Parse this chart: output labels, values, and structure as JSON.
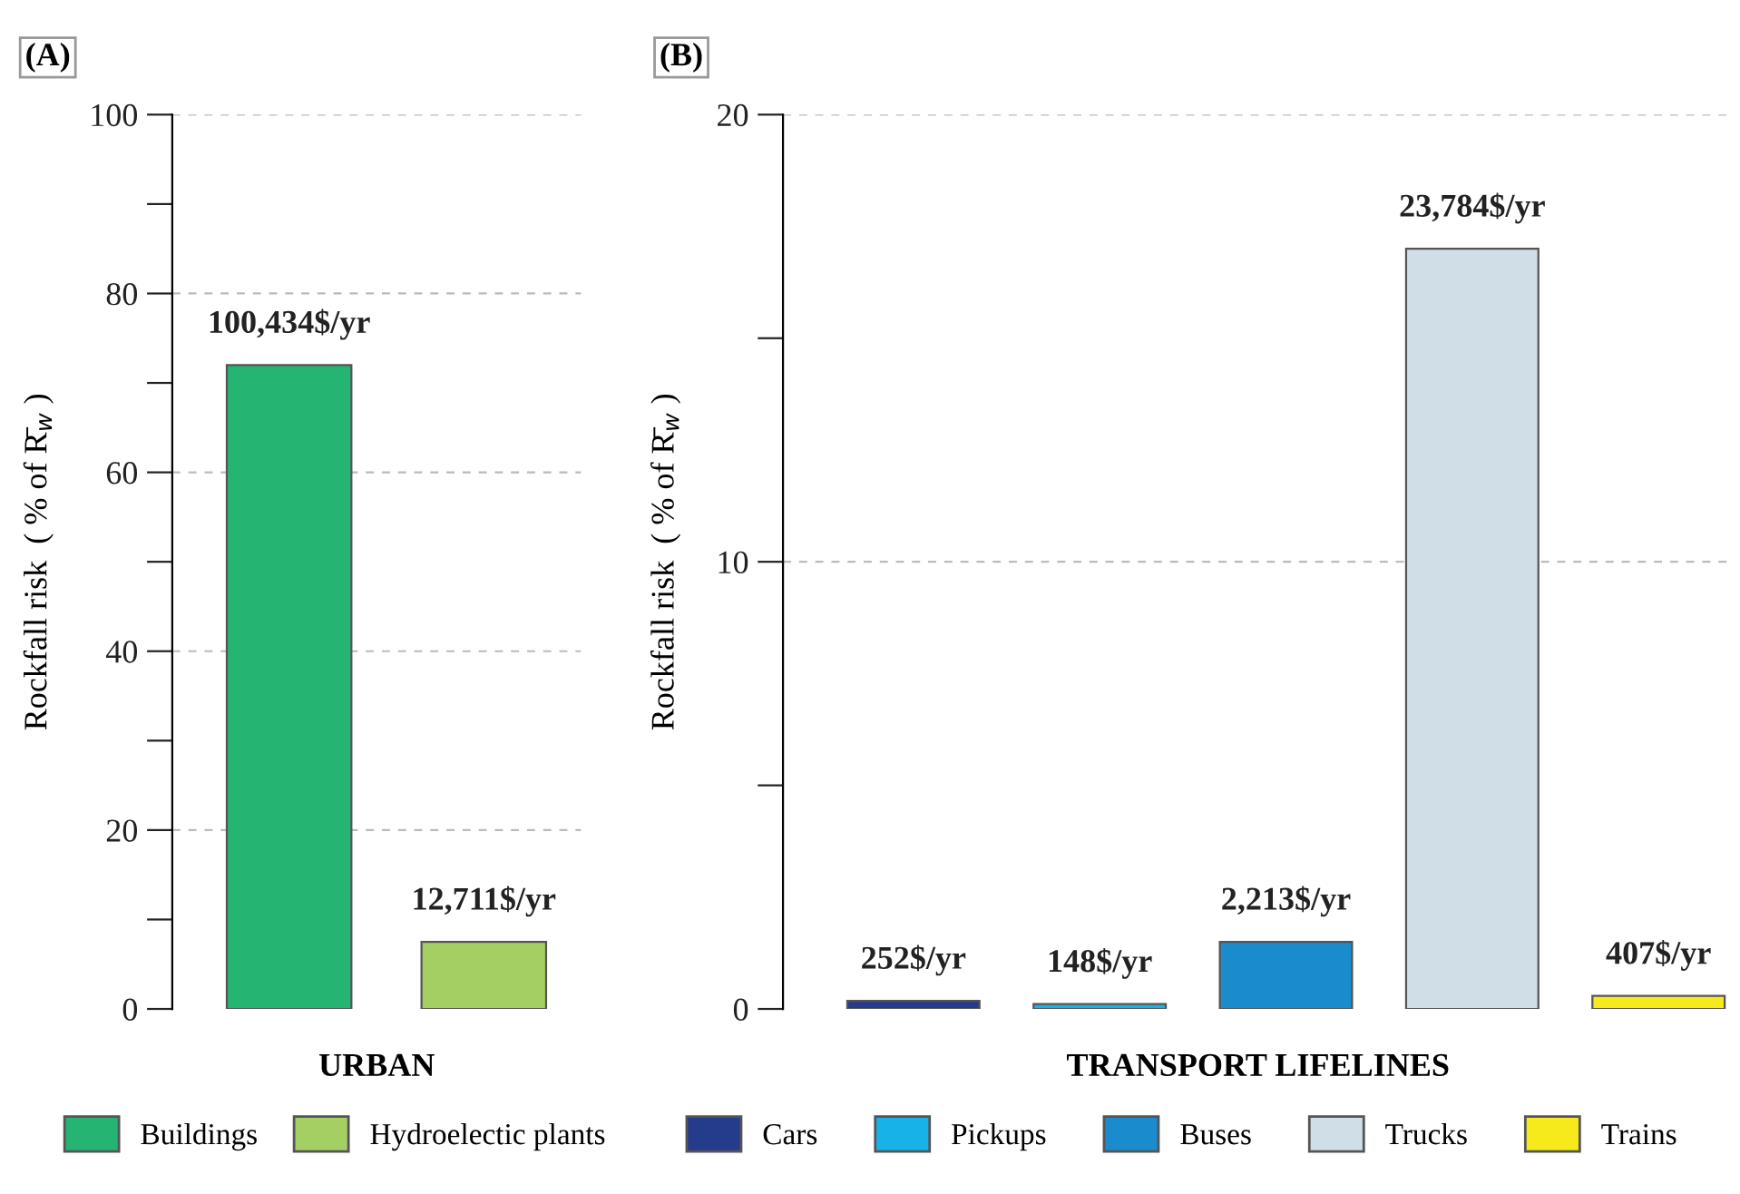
{
  "chart_data": [
    {
      "type": "bar",
      "title": "(A)",
      "xlabel": "URBAN",
      "ylabel": "Rockfall risk  ( % of R̄$_{w}$ )",
      "categories": [
        null,
        null
      ],
      "series": [
        {
          "name": "Buildings",
          "color": "#25b472",
          "values": [
            72,
            null
          ]
        },
        {
          "name": "Hydroelectic plants",
          "color": "#a4d063",
          "values": [
            null,
            7.5
          ]
        }
      ],
      "annotations": [
        {
          "text": "100,434$/yr",
          "y": 72
        },
        {
          "text": "12,711$/yr",
          "y": 7.5
        }
      ],
      "ylim": [
        0,
        100
      ],
      "yticks": [
        0,
        {
          "value": 10,
          "label": null
        },
        20,
        {
          "value": 30,
          "label": null
        },
        40,
        {
          "value": 50,
          "label": null
        },
        60,
        {
          "value": 70,
          "label": null
        },
        80,
        {
          "value": 90,
          "label": null
        },
        100
      ],
      "grid": "y",
      "legend": "bottom"
    },
    {
      "type": "bar",
      "title": "(B)",
      "xlabel": "TRANSPORT LIFELINES",
      "ylabel": "Rockfall risk  ( % of R̄$_{w}$ )",
      "categories": [
        null,
        null,
        null,
        null,
        null
      ],
      "series": [
        {
          "name": "Cars",
          "color": "#253b8b",
          "values": [
            0.18,
            null,
            null,
            null,
            null
          ]
        },
        {
          "name": "Pickups",
          "color": "#17b3e8",
          "values": [
            null,
            0.11,
            null,
            null,
            null
          ]
        },
        {
          "name": "Buses",
          "color": "#1a8bcc",
          "values": [
            null,
            null,
            1.5,
            null,
            null
          ]
        },
        {
          "name": "Trucks",
          "color": "#cfdee7",
          "values": [
            null,
            null,
            null,
            17.0,
            null
          ]
        },
        {
          "name": "Trains",
          "color": "#f6ea1d",
          "values": [
            null,
            null,
            null,
            null,
            0.29
          ]
        }
      ],
      "annotations": [
        {
          "text": "252$/yr",
          "y": 0.18
        },
        {
          "text": "148$/yr",
          "y": 0.11
        },
        {
          "text": "2,213$/yr",
          "y": 1.5
        },
        {
          "text": "23,784$/yr",
          "y": 17.0
        },
        {
          "text": "407$/yr",
          "y": 0.29
        }
      ],
      "ylim": [
        0,
        20
      ],
      "yticks": [
        0,
        {
          "value": 5,
          "label": null
        },
        10,
        {
          "value": 15,
          "label": null
        },
        20
      ],
      "grid": "y",
      "legend": "bottom"
    }
  ]
}
